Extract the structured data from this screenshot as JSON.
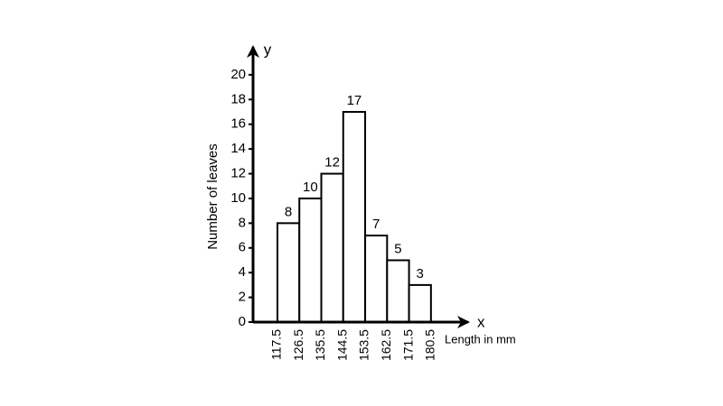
{
  "chart_data": {
    "type": "histogram",
    "bins": [
      117.5,
      126.5,
      135.5,
      144.5,
      153.5,
      162.5,
      171.5,
      180.5
    ],
    "values": [
      8,
      10,
      12,
      17,
      7,
      5,
      3
    ],
    "color": "#ffffff",
    "xlabel": "Length in mm",
    "ylabel": "Number of leaves",
    "x_axis_name": "x",
    "y_axis_name": "y",
    "xlim": [
      107.5,
      196.5
    ],
    "ylim": [
      0,
      22.4
    ],
    "yticks": [
      0,
      2,
      4,
      6,
      8,
      10,
      12,
      14,
      16,
      18,
      20
    ]
  }
}
